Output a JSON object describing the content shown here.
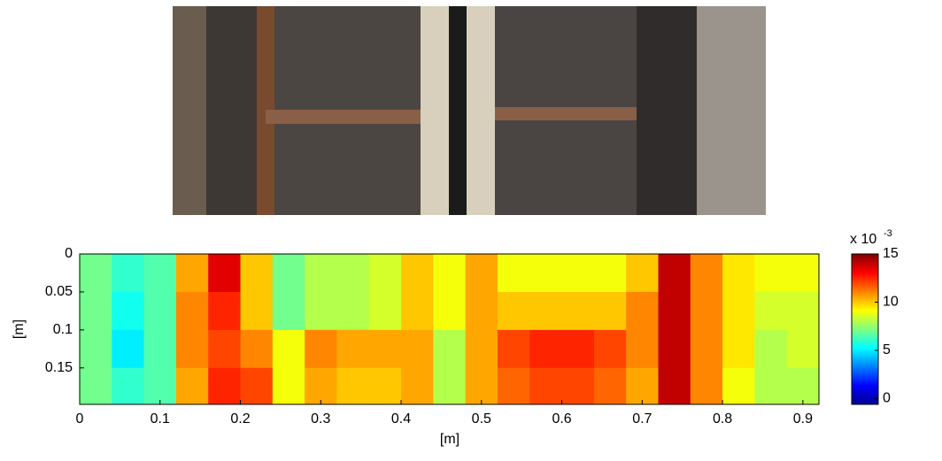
{
  "chart_data": {
    "type": "heatmap",
    "xlabel": "[m]",
    "ylabel": "[m]",
    "xlim": [
      0,
      0.92
    ],
    "ylim": [
      0,
      0.198
    ],
    "xticks": [
      0,
      0.1,
      0.2,
      0.3,
      0.4,
      0.5,
      0.6,
      0.7,
      0.8,
      0.9
    ],
    "yticks": [
      0,
      0.05,
      0.1,
      0.15
    ],
    "y_inverted": true,
    "colormap": "jet",
    "clim": [
      -0.6,
      15
    ],
    "colorbar_ticks": [
      0,
      5,
      10,
      15
    ],
    "colorbar_exponent_base": "x 10",
    "colorbar_exponent": "-3",
    "xbins": [
      0,
      0.04,
      0.08,
      0.12,
      0.16,
      0.2,
      0.24,
      0.28,
      0.32,
      0.36,
      0.4,
      0.44,
      0.48,
      0.52,
      0.56,
      0.6,
      0.64,
      0.68,
      0.72,
      0.76,
      0.8,
      0.84,
      0.88,
      0.92
    ],
    "ybins": [
      0,
      0.05,
      0.1,
      0.15,
      0.198
    ],
    "values": [
      [
        7,
        6,
        6.5,
        10.5,
        13.5,
        10,
        7,
        8,
        8,
        8.5,
        10,
        9,
        10.5,
        9,
        9,
        9,
        9,
        10,
        14,
        11,
        9.5,
        9,
        9
      ],
      [
        7,
        5.5,
        6.5,
        11,
        12.5,
        10,
        7,
        8,
        8,
        8.5,
        10,
        9,
        10.5,
        10,
        10,
        10,
        10,
        11,
        14,
        11,
        9.5,
        8.5,
        8.5
      ],
      [
        7,
        5,
        6.5,
        11,
        12,
        11,
        9,
        11,
        10.5,
        10.5,
        10.5,
        8,
        10.5,
        12,
        12.5,
        12.5,
        12,
        11,
        14,
        11,
        9.5,
        8,
        8.5
      ],
      [
        7,
        6,
        6.5,
        10.5,
        12.5,
        12,
        9,
        10.5,
        10,
        10,
        10.5,
        8,
        10.5,
        11.5,
        12,
        12,
        11.5,
        10.5,
        14,
        11,
        9,
        8,
        8
      ]
    ]
  }
}
